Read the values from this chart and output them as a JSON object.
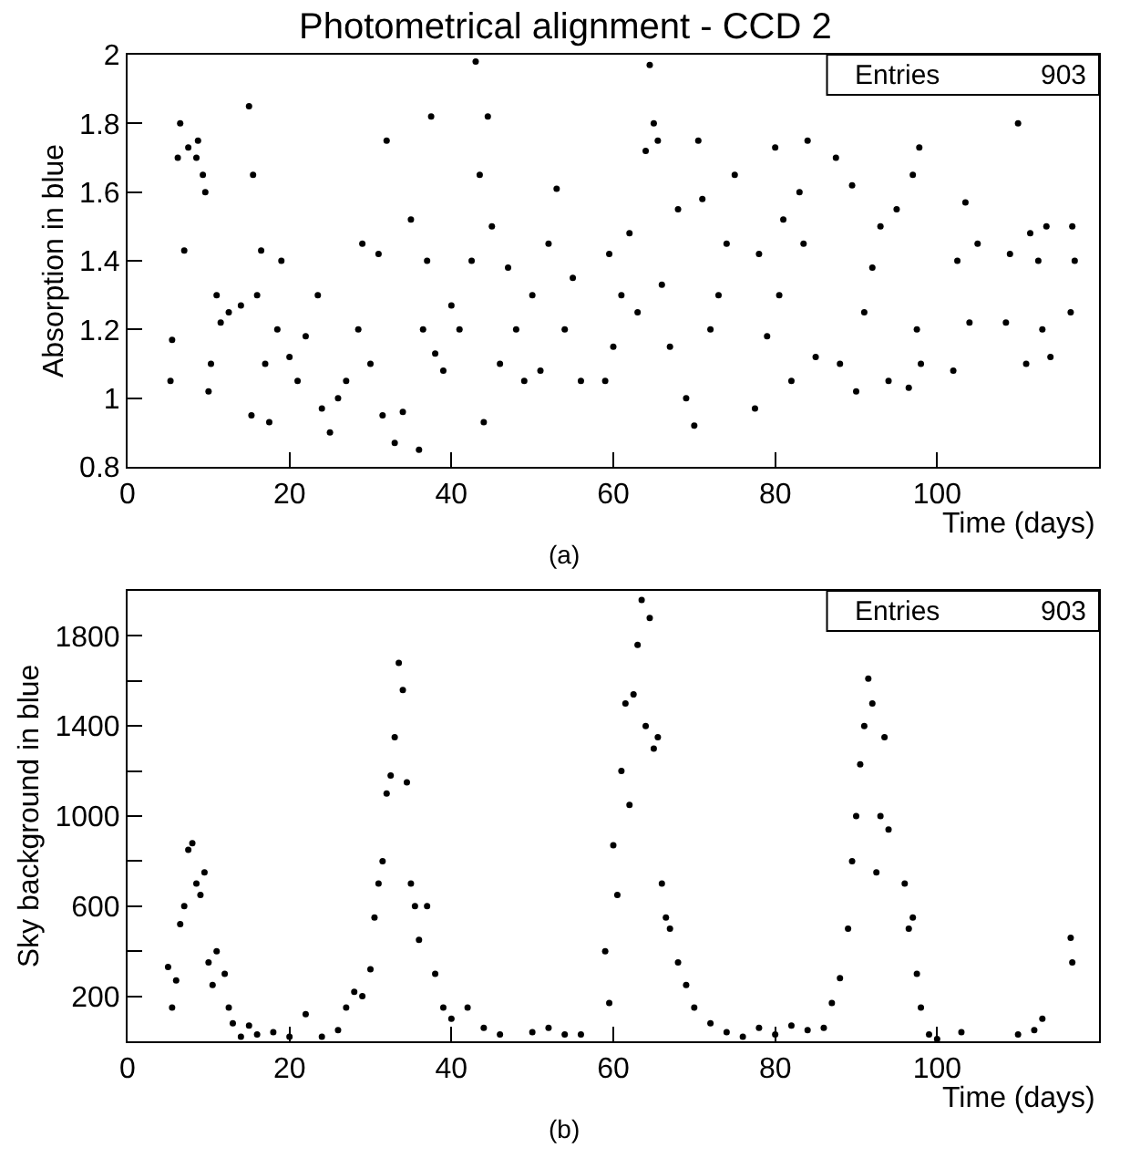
{
  "chart_data": [
    {
      "type": "scatter",
      "title": "Photometrical alignment - CCD 2",
      "xlabel": "Time (days)",
      "ylabel": "Absorption in blue",
      "annotations": [
        "Entries",
        "903",
        "(a)"
      ],
      "xlim": [
        0,
        120
      ],
      "xticks": [
        0,
        20,
        40,
        60,
        80,
        100
      ],
      "ylim": [
        0.8,
        2
      ],
      "yticks": [
        0.8,
        1,
        1.2,
        1.4,
        1.6,
        1.8,
        2
      ],
      "marker": "circle",
      "series": [
        {
          "color": "#000000",
          "x": [
            5.3,
            5.5,
            6.2,
            6.5,
            7,
            7.5,
            8.5,
            8.7,
            9.3,
            9.6,
            10,
            10.3,
            11,
            11.5,
            12.5,
            14,
            15,
            15.5,
            15.3,
            16,
            16.5,
            17,
            17.5,
            18.5,
            19,
            20,
            21,
            22,
            23.5,
            24,
            25,
            26,
            27,
            28.5,
            29,
            30,
            31,
            31.5,
            32,
            33,
            34,
            35,
            36,
            36.5,
            37,
            37.5,
            38,
            39,
            40,
            41,
            42.5,
            43,
            43.5,
            44.5,
            44,
            45,
            46,
            47,
            48,
            49,
            50,
            51,
            52,
            53,
            54,
            55,
            56,
            59,
            59.5,
            60,
            61,
            62,
            63,
            64,
            64.5,
            65,
            65.5,
            66,
            67,
            68,
            69,
            70,
            70.5,
            71,
            72,
            73,
            74,
            75,
            77.5,
            78,
            79,
            80,
            80.5,
            81,
            82,
            83,
            83.5,
            84,
            85,
            87.5,
            88,
            89.5,
            90,
            91,
            92,
            93,
            94,
            95,
            96.5,
            97,
            97.5,
            97.8,
            98,
            102,
            102.5,
            103.5,
            104,
            105,
            108.5,
            109,
            110,
            111,
            111.5,
            112.5,
            113,
            113.5,
            114,
            116.5,
            116.7,
            117
          ],
          "values": [
            1.05,
            1.17,
            1.7,
            1.8,
            1.43,
            1.73,
            1.7,
            1.75,
            1.65,
            1.6,
            1.02,
            1.1,
            1.3,
            1.22,
            1.25,
            1.27,
            1.85,
            1.65,
            0.95,
            1.3,
            1.43,
            1.1,
            0.93,
            1.2,
            1.4,
            1.12,
            1.05,
            1.18,
            1.3,
            0.97,
            0.9,
            1,
            1.05,
            1.2,
            1.45,
            1.1,
            1.42,
            0.95,
            1.75,
            0.87,
            0.96,
            1.52,
            0.85,
            1.2,
            1.4,
            1.82,
            1.13,
            1.08,
            1.27,
            1.2,
            1.4,
            1.98,
            1.65,
            1.82,
            0.93,
            1.5,
            1.1,
            1.38,
            1.2,
            1.05,
            1.3,
            1.08,
            1.45,
            1.61,
            1.2,
            1.35,
            1.05,
            1.05,
            1.42,
            1.15,
            1.3,
            1.48,
            1.25,
            1.72,
            1.97,
            1.8,
            1.75,
            1.33,
            1.15,
            1.55,
            1,
            0.92,
            1.75,
            1.58,
            1.2,
            1.3,
            1.45,
            1.65,
            0.97,
            1.42,
            1.18,
            1.73,
            1.3,
            1.52,
            1.05,
            1.6,
            1.45,
            1.75,
            1.12,
            1.7,
            1.1,
            1.62,
            1.02,
            1.25,
            1.38,
            1.5,
            1.05,
            1.55,
            1.03,
            1.65,
            1.2,
            1.73,
            1.1,
            1.08,
            1.4,
            1.57,
            1.22,
            1.45,
            1.22,
            1.42,
            1.8,
            1.1,
            1.48,
            1.4,
            1.2,
            1.5,
            1.12,
            1.25,
            1.5,
            1.4
          ]
        }
      ]
    },
    {
      "type": "scatter",
      "xlabel": "Time (days)",
      "ylabel": "Sky background in blue",
      "annotations": [
        "Entries",
        "903",
        "(b)"
      ],
      "xlim": [
        0,
        120
      ],
      "xticks": [
        0,
        20,
        40,
        60,
        80,
        100
      ],
      "ylim": [
        0,
        2000
      ],
      "yticks": [
        200,
        {
          "value": 400,
          "label": null
        },
        600,
        {
          "value": 800,
          "label": null
        },
        1000,
        {
          "value": 1200,
          "label": null
        },
        1400,
        {
          "value": 1600,
          "label": null
        },
        1800
      ],
      "marker": "circle",
      "series": [
        {
          "color": "#000000",
          "x": [
            5,
            5.5,
            6,
            6.5,
            7,
            7.5,
            8,
            8.5,
            9,
            9.5,
            10,
            10.5,
            11,
            12,
            12.5,
            13,
            14,
            15,
            16,
            18,
            20,
            22,
            24,
            26,
            27,
            28,
            29,
            30,
            30.5,
            31,
            31.5,
            32,
            32.5,
            33,
            33.5,
            34,
            34.5,
            35,
            35.5,
            36,
            37,
            38,
            39,
            40,
            42,
            44,
            46,
            50,
            52,
            54,
            56,
            59,
            59.5,
            60,
            60.5,
            61,
            61.5,
            62,
            62.5,
            63,
            63.5,
            64,
            64.5,
            65,
            65.5,
            66,
            66.5,
            67,
            68,
            69,
            70,
            72,
            74,
            76,
            78,
            80,
            82,
            84,
            86,
            87,
            88,
            89,
            89.5,
            90,
            90.5,
            91,
            91.5,
            92,
            92.5,
            93,
            93.5,
            94,
            96,
            96.5,
            97,
            97.5,
            98,
            99,
            100,
            103,
            110,
            112,
            113,
            116.5,
            116.7
          ],
          "values": [
            330,
            150,
            270,
            520,
            600,
            850,
            880,
            700,
            650,
            750,
            350,
            250,
            400,
            300,
            150,
            80,
            20,
            70,
            30,
            40,
            20,
            120,
            20,
            50,
            150,
            220,
            200,
            320,
            550,
            700,
            800,
            1100,
            1180,
            1350,
            1680,
            1560,
            1150,
            700,
            600,
            450,
            600,
            300,
            150,
            100,
            150,
            60,
            30,
            40,
            60,
            30,
            30,
            400,
            170,
            870,
            650,
            1200,
            1500,
            1050,
            1540,
            1760,
            1960,
            1400,
            1880,
            1300,
            1350,
            700,
            550,
            500,
            350,
            250,
            150,
            80,
            40,
            20,
            60,
            30,
            70,
            50,
            60,
            170,
            280,
            500,
            800,
            1000,
            1230,
            1400,
            1610,
            1500,
            750,
            1000,
            1350,
            940,
            700,
            500,
            550,
            300,
            150,
            30,
            10,
            40,
            30,
            50,
            100,
            460,
            350
          ]
        }
      ]
    }
  ]
}
